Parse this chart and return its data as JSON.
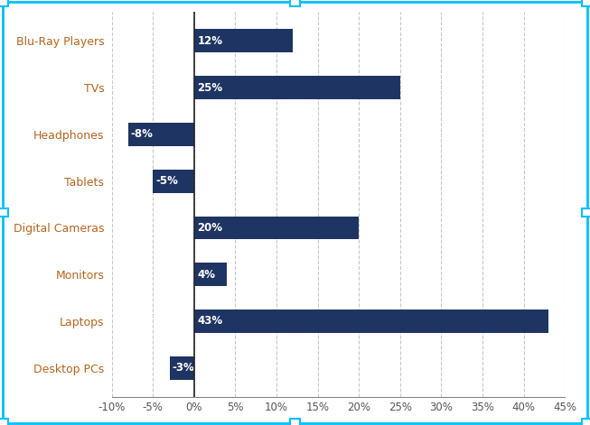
{
  "categories": [
    "Desktop PCs",
    "Laptops",
    "Monitors",
    "Digital Cameras",
    "Tablets",
    "Headphones",
    "TVs",
    "Blu-Ray Players"
  ],
  "values": [
    -3,
    43,
    4,
    20,
    -5,
    -8,
    25,
    12
  ],
  "bar_color": "#1e3564",
  "label_color": "#ffffff",
  "ylabel_color": "#b5651d",
  "background_color": "#ffffff",
  "xlim": [
    -10,
    45
  ],
  "xticks": [
    -10,
    -5,
    0,
    5,
    10,
    15,
    20,
    25,
    30,
    35,
    40,
    45
  ],
  "xtick_labels": [
    "-10%",
    "-5%",
    "0%",
    "5%",
    "10%",
    "15%",
    "20%",
    "25%",
    "30%",
    "35%",
    "40%",
    "45%"
  ],
  "grid_color": "#c8c8c8",
  "bar_height": 0.5,
  "label_fontsize": 8.5,
  "tick_fontsize": 8.5,
  "category_fontsize": 9,
  "border_color": "#00bfff",
  "zero_line_color": "#222222",
  "bottom_spine_color": "#888888"
}
